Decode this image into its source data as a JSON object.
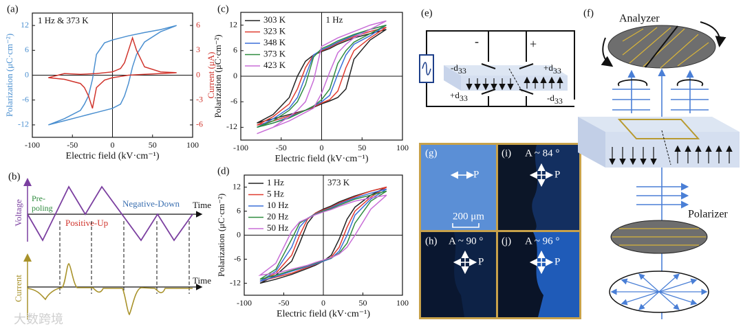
{
  "chart_data": [
    {
      "type": "line",
      "panel": "(a)",
      "annotation": "1 Hz & 373 K",
      "xlabel": "Electric field (kV·cm⁻¹)",
      "ylabel": "Polarization (μC·cm⁻²)",
      "y2label": "Current (μA)",
      "xlim": [
        -100,
        100
      ],
      "xticks": [
        -100,
        -50,
        0,
        50,
        100
      ],
      "ylim": [
        -15,
        15
      ],
      "yticks": [
        -12,
        -6,
        0,
        6,
        12
      ],
      "y2lim": [
        -7.5,
        7.5
      ],
      "y2ticks": [
        -6,
        -3,
        0,
        3,
        6
      ],
      "x": [
        80,
        60,
        40,
        20,
        0,
        -10,
        -20,
        -25,
        -30,
        -35,
        -40,
        -60,
        -80,
        -60,
        -40,
        -20,
        0,
        10,
        15,
        20,
        25,
        30,
        40,
        60,
        80
      ],
      "series": [
        {
          "color": "#4a8fd0",
          "values": [
            12,
            11,
            10.3,
            9.5,
            8.5,
            7.8,
            5,
            -1,
            -5,
            -7,
            -8.5,
            -10.5,
            -12,
            -11,
            -10,
            -9,
            -8,
            -7,
            -5,
            -2,
            2,
            5,
            8,
            10.5,
            12
          ]
        },
        {
          "color": "#d0342c",
          "axis": "y2",
          "values": [
            0.3,
            0.2,
            0.1,
            0,
            -0.3,
            -0.6,
            -1.5,
            -4,
            -2.5,
            -1.5,
            -1,
            -0.5,
            -0.3,
            0.2,
            0.1,
            0.2,
            0.4,
            0.8,
            1.5,
            3,
            4.5,
            3,
            1,
            0.4,
            0.3
          ]
        }
      ]
    },
    {
      "type": "line",
      "panel": "(c)",
      "annotation": "1 Hz",
      "legend": "upper left",
      "xlabel": "Electric field (kV·cm⁻¹)",
      "ylabel": "Polarization (μC·cm⁻²)",
      "xlim": [
        -100,
        100
      ],
      "xticks": [
        -100,
        -50,
        0,
        50,
        100
      ],
      "ylim": [
        -15,
        15
      ],
      "yticks": [
        -12,
        -6,
        0,
        6,
        12
      ],
      "x": [
        80,
        60,
        40,
        20,
        10,
        0,
        -10,
        -20,
        -30,
        -40,
        -60,
        -80,
        -60,
        -40,
        -20,
        -10,
        0,
        10,
        20,
        30,
        40,
        60,
        80
      ],
      "series": [
        {
          "name": "303 K",
          "color": "#222222",
          "values": [
            11,
            10,
            9,
            7.5,
            6.5,
            5.8,
            5,
            3.5,
            0,
            -5,
            -9,
            -11,
            -10,
            -9,
            -8,
            -7.3,
            -6.5,
            -5.8,
            -5,
            -3,
            4,
            8.5,
            11
          ]
        },
        {
          "name": "323 K",
          "color": "#e03a2f",
          "values": [
            11.5,
            10.5,
            9.3,
            7.8,
            6.8,
            6,
            5,
            2,
            -3,
            -6.5,
            -9.5,
            -11.5,
            -10.5,
            -9.3,
            -8,
            -7.2,
            -6.3,
            -5.5,
            -3.5,
            2,
            6,
            9,
            11.5
          ]
        },
        {
          "name": "348 K",
          "color": "#3a6fd8",
          "values": [
            12,
            11,
            9.6,
            8,
            7,
            6.2,
            5,
            0,
            -5,
            -7.5,
            -10,
            -12,
            -11,
            -9.6,
            -8,
            -7,
            -6,
            -4.5,
            0.5,
            5,
            7.5,
            9.5,
            12
          ]
        },
        {
          "name": "373 K",
          "color": "#2e8b3e",
          "values": [
            12,
            11,
            9.8,
            8.3,
            7.3,
            6.5,
            4.5,
            -2,
            -6,
            -8,
            -10.5,
            -12,
            -11,
            -9.8,
            -8,
            -7,
            -5.5,
            -3,
            3,
            6,
            8,
            10,
            12
          ]
        },
        {
          "name": "423 K",
          "color": "#c86dd7",
          "values": [
            13,
            12,
            10.5,
            9,
            8,
            7,
            -1,
            -6,
            -8,
            -9.5,
            -12,
            -13.5,
            -12,
            -10.5,
            -8.5,
            -7.5,
            -4,
            1,
            5.5,
            7.5,
            9,
            11,
            13
          ]
        }
      ]
    },
    {
      "type": "line",
      "panel": "(d)",
      "annotation": "373 K",
      "legend": "upper left",
      "xlabel": "Electric field (kV·cm⁻¹)",
      "ylabel": "Polarization (μC·cm⁻²)",
      "xlim": [
        -100,
        100
      ],
      "xticks": [
        -100,
        -50,
        0,
        50,
        100
      ],
      "ylim": [
        -15,
        15
      ],
      "yticks": [
        -12,
        -6,
        0,
        6,
        12
      ],
      "x": [
        80,
        60,
        40,
        20,
        10,
        0,
        -10,
        -20,
        -30,
        -40,
        -60,
        -80,
        -60,
        -40,
        -20,
        -10,
        0,
        10,
        20,
        30,
        40,
        60,
        80
      ],
      "series": [
        {
          "name": "1 Hz",
          "color": "#222222",
          "values": [
            12,
            11,
            9.8,
            8.3,
            7.3,
            6.5,
            5.5,
            3,
            -2,
            -6.5,
            -10,
            -12,
            -11,
            -9.8,
            -8.3,
            -7.5,
            -6.5,
            -5,
            -1,
            4,
            7,
            10,
            12
          ]
        },
        {
          "name": "5 Hz",
          "color": "#e03a2f",
          "values": [
            12,
            11,
            9.6,
            8,
            7,
            6.3,
            5.5,
            4,
            0,
            -5,
            -9.5,
            -11.5,
            -10.5,
            -9.5,
            -8,
            -7.3,
            -6.5,
            -5.5,
            -3,
            2,
            6,
            9.5,
            12
          ]
        },
        {
          "name": "10 Hz",
          "color": "#3a6fd8",
          "values": [
            11.5,
            10.5,
            9.3,
            7.8,
            6.8,
            6.1,
            5.3,
            4.2,
            2,
            -3,
            -9,
            -11.5,
            -10.3,
            -9,
            -7.8,
            -7.2,
            -6.5,
            -5.8,
            -4,
            0,
            5,
            9,
            11.5
          ]
        },
        {
          "name": "20 Hz",
          "color": "#2e8b3e",
          "values": [
            11,
            10,
            9,
            7.5,
            6.6,
            6,
            5.2,
            4.2,
            3,
            -1,
            -8.5,
            -11,
            -10,
            -8.8,
            -7.6,
            -7,
            -6.3,
            -5.7,
            -4.5,
            -2,
            3,
            8.5,
            11
          ]
        },
        {
          "name": "50 Hz",
          "color": "#c86dd7",
          "values": [
            10,
            9.3,
            8.5,
            7.2,
            6.4,
            5.8,
            5.1,
            4.2,
            3.3,
            1,
            -7,
            -10,
            -9.5,
            -8.5,
            -7.5,
            -6.8,
            -6.2,
            -5.6,
            -4.7,
            -3,
            0,
            6.5,
            10
          ]
        }
      ]
    }
  ],
  "panel_b": {
    "label": "(b)",
    "voltage": "Voltage",
    "time_top": "Time",
    "pre_poling": [
      "Pre-",
      "poling"
    ],
    "positive_up": "Positive-Up",
    "negative_down": "Negative-Down",
    "current": "Current",
    "time_bottom": "Time"
  },
  "panel_e": {
    "label": "(e)",
    "minus": "-",
    "plus": "+",
    "left_top": [
      "-d",
      "33"
    ],
    "right_top": [
      "+d",
      "33"
    ],
    "left_bottom": [
      "+d",
      "33"
    ],
    "right_bottom": [
      "-d",
      "33"
    ]
  },
  "images": {
    "g": {
      "label": "(g)",
      "p": "P",
      "scale": "200 μm"
    },
    "i": {
      "label": "(i)",
      "angle": "A ~ 84 °",
      "p": "P"
    },
    "h": {
      "label": "(h)",
      "angle": "A ~ 90 °",
      "p": "P"
    },
    "j": {
      "label": "(j)",
      "angle": "A ~ 96 °",
      "p": "P"
    }
  },
  "panel_f": {
    "label": "(f)",
    "analyzer": "Analyzer",
    "polarizer": "Polarizer"
  },
  "watermark": "大数跨境"
}
